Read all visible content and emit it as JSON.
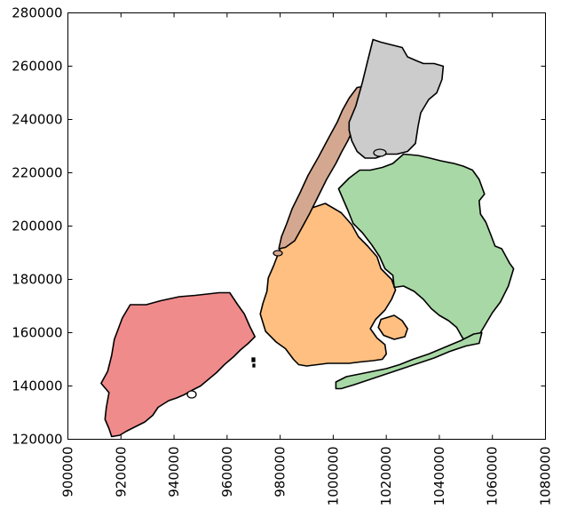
{
  "chart_data": {
    "type": "map",
    "xlim": [
      900000,
      1080000
    ],
    "ylim": [
      120000,
      280000
    ],
    "x_ticks": [
      {
        "value": 900000,
        "label": "900000"
      },
      {
        "value": 920000,
        "label": "920000"
      },
      {
        "value": 940000,
        "label": "940000"
      },
      {
        "value": 960000,
        "label": "960000"
      },
      {
        "value": 980000,
        "label": "980000"
      },
      {
        "value": 1000000,
        "label": "1000000"
      },
      {
        "value": 1020000,
        "label": "1020000"
      },
      {
        "value": 1040000,
        "label": "1040000"
      },
      {
        "value": 1060000,
        "label": "1060000"
      },
      {
        "value": 1080000,
        "label": "1080000"
      }
    ],
    "y_ticks": [
      {
        "value": 120000,
        "label": "120000"
      },
      {
        "value": 140000,
        "label": "140000"
      },
      {
        "value": 160000,
        "label": "160000"
      },
      {
        "value": 180000,
        "label": "180000"
      },
      {
        "value": 200000,
        "label": "200000"
      },
      {
        "value": 220000,
        "label": "220000"
      },
      {
        "value": 240000,
        "label": "240000"
      },
      {
        "value": 260000,
        "label": "260000"
      },
      {
        "value": 280000,
        "label": "280000"
      }
    ],
    "grid": false,
    "x_tick_rotation": 90,
    "regions": [
      {
        "id": "staten-island",
        "color": "#f08b8b",
        "coords": [
          [
            915500,
            124000
          ],
          [
            916500,
            121000
          ],
          [
            919500,
            121500
          ],
          [
            922000,
            123000
          ],
          [
            926000,
            125000
          ],
          [
            929000,
            126500
          ],
          [
            932000,
            129000
          ],
          [
            934000,
            132000
          ],
          [
            938000,
            134500
          ],
          [
            941000,
            135500
          ],
          [
            944000,
            136800
          ],
          [
            947000,
            138500
          ],
          [
            950000,
            140000
          ],
          [
            953000,
            142500
          ],
          [
            956000,
            145000
          ],
          [
            959000,
            148000
          ],
          [
            962500,
            151000
          ],
          [
            965000,
            153500
          ],
          [
            968000,
            156000
          ],
          [
            970500,
            158500
          ],
          [
            968500,
            162500
          ],
          [
            966500,
            167000
          ],
          [
            964000,
            170500
          ],
          [
            961000,
            175000
          ],
          [
            957000,
            175000
          ],
          [
            952500,
            174500
          ],
          [
            948000,
            174000
          ],
          [
            942000,
            173500
          ],
          [
            935000,
            172000
          ],
          [
            929500,
            170500
          ],
          [
            923500,
            170500
          ],
          [
            920500,
            165500
          ],
          [
            917500,
            157500
          ],
          [
            916500,
            151500
          ],
          [
            915000,
            145500
          ],
          [
            912500,
            141000
          ],
          [
            915500,
            137500
          ],
          [
            914500,
            132000
          ],
          [
            914000,
            127500
          ]
        ]
      },
      {
        "id": "brooklyn",
        "color": "#ffbf80",
        "coords": [
          [
            972500,
            167000
          ],
          [
            974500,
            160500
          ],
          [
            978500,
            156500
          ],
          [
            982000,
            154000
          ],
          [
            985000,
            150000
          ],
          [
            987000,
            148000
          ],
          [
            990000,
            147500
          ],
          [
            994000,
            148000
          ],
          [
            998000,
            148500
          ],
          [
            1002000,
            148500
          ],
          [
            1006000,
            148500
          ],
          [
            1010000,
            149000
          ],
          [
            1015000,
            149500
          ],
          [
            1018500,
            150000
          ],
          [
            1020000,
            152000
          ],
          [
            1019500,
            155500
          ],
          [
            1016500,
            158000
          ],
          [
            1014000,
            161500
          ],
          [
            1016000,
            165000
          ],
          [
            1019500,
            168500
          ],
          [
            1022000,
            172500
          ],
          [
            1023500,
            176000
          ],
          [
            1022000,
            180000
          ],
          [
            1018000,
            184000
          ],
          [
            1016500,
            188500
          ],
          [
            1013000,
            192500
          ],
          [
            1009500,
            196000
          ],
          [
            1007000,
            200500
          ],
          [
            1003000,
            205000
          ],
          [
            997000,
            208500
          ],
          [
            991000,
            206500
          ],
          [
            988000,
            203500
          ],
          [
            986500,
            199000
          ],
          [
            983500,
            196500
          ],
          [
            980000,
            191500
          ],
          [
            977500,
            185000
          ],
          [
            975500,
            180500
          ],
          [
            975000,
            175500
          ],
          [
            973500,
            171000
          ]
        ]
      },
      {
        "id": "queens",
        "color": "#a8d8a5",
        "coords": [
          [
            1002000,
            214000
          ],
          [
            1006000,
            218000
          ],
          [
            1010000,
            221000
          ],
          [
            1014000,
            221000
          ],
          [
            1018500,
            222000
          ],
          [
            1022500,
            223500
          ],
          [
            1026500,
            227000
          ],
          [
            1032000,
            226500
          ],
          [
            1036500,
            225500
          ],
          [
            1040500,
            224500
          ],
          [
            1045500,
            223500
          ],
          [
            1049000,
            222500
          ],
          [
            1052500,
            221000
          ],
          [
            1055000,
            217500
          ],
          [
            1057000,
            212000
          ],
          [
            1055000,
            209500
          ],
          [
            1055500,
            204500
          ],
          [
            1057500,
            201500
          ],
          [
            1059500,
            196500
          ],
          [
            1061000,
            192500
          ],
          [
            1063500,
            191500
          ],
          [
            1066500,
            186000
          ],
          [
            1068000,
            184000
          ],
          [
            1066000,
            177500
          ],
          [
            1063000,
            171500
          ],
          [
            1060000,
            167500
          ],
          [
            1057000,
            162500
          ],
          [
            1054000,
            157500
          ],
          [
            1050500,
            155500
          ],
          [
            1048500,
            158500
          ],
          [
            1046500,
            162000
          ],
          [
            1043500,
            164500
          ],
          [
            1040000,
            166500
          ],
          [
            1037000,
            169000
          ],
          [
            1034000,
            172500
          ],
          [
            1030500,
            175500
          ],
          [
            1026500,
            177500
          ],
          [
            1023000,
            177000
          ],
          [
            1022500,
            181500
          ],
          [
            1019500,
            184000
          ],
          [
            1017500,
            188500
          ],
          [
            1014500,
            193000
          ],
          [
            1011000,
            197500
          ],
          [
            1007500,
            201000
          ],
          [
            1005500,
            206000
          ]
        ]
      },
      {
        "id": "rockaway",
        "color": "#a8d8a5",
        "coords": [
          [
            1001000,
            141500
          ],
          [
            1005000,
            143500
          ],
          [
            1010000,
            144500
          ],
          [
            1015000,
            145500
          ],
          [
            1020000,
            146500
          ],
          [
            1025000,
            148000
          ],
          [
            1030000,
            150000
          ],
          [
            1036000,
            152000
          ],
          [
            1042000,
            154500
          ],
          [
            1048000,
            157000
          ],
          [
            1053000,
            159500
          ],
          [
            1056000,
            160000
          ],
          [
            1055000,
            156000
          ],
          [
            1050000,
            155000
          ],
          [
            1044000,
            153000
          ],
          [
            1038000,
            150500
          ],
          [
            1032000,
            148500
          ],
          [
            1026000,
            146500
          ],
          [
            1020000,
            144500
          ],
          [
            1014000,
            142500
          ],
          [
            1008000,
            140500
          ],
          [
            1003000,
            139000
          ],
          [
            1001000,
            139000
          ]
        ]
      },
      {
        "id": "manhattan",
        "color": "#d4a890",
        "coords": [
          [
            979500,
            191500
          ],
          [
            980500,
            196000
          ],
          [
            982500,
            201000
          ],
          [
            984500,
            206500
          ],
          [
            987500,
            212500
          ],
          [
            990500,
            219000
          ],
          [
            994500,
            226000
          ],
          [
            998500,
            233500
          ],
          [
            1001500,
            239000
          ],
          [
            1003500,
            243500
          ],
          [
            1006000,
            248000
          ],
          [
            1009000,
            252000
          ],
          [
            1012000,
            252500
          ],
          [
            1012500,
            248000
          ],
          [
            1010500,
            244000
          ],
          [
            1008500,
            238500
          ],
          [
            1005500,
            232000
          ],
          [
            1003000,
            227500
          ],
          [
            1001000,
            223500
          ],
          [
            997500,
            217500
          ],
          [
            994000,
            210500
          ],
          [
            991000,
            204500
          ],
          [
            988000,
            199000
          ],
          [
            985500,
            194500
          ],
          [
            982000,
            192000
          ]
        ]
      },
      {
        "id": "bronx",
        "color": "#cccccc",
        "coords": [
          [
            1006000,
            239000
          ],
          [
            1008500,
            245000
          ],
          [
            1011000,
            254000
          ],
          [
            1013000,
            262000
          ],
          [
            1015000,
            270000
          ],
          [
            1018000,
            269000
          ],
          [
            1022000,
            268000
          ],
          [
            1026000,
            267000
          ],
          [
            1028000,
            263500
          ],
          [
            1031500,
            262000
          ],
          [
            1034000,
            261000
          ],
          [
            1038000,
            261000
          ],
          [
            1041500,
            260000
          ],
          [
            1041000,
            255000
          ],
          [
            1039000,
            250000
          ],
          [
            1036000,
            247500
          ],
          [
            1033000,
            242500
          ],
          [
            1032000,
            237500
          ],
          [
            1031000,
            231000
          ],
          [
            1028000,
            228000
          ],
          [
            1024000,
            227000
          ],
          [
            1020000,
            227000
          ],
          [
            1016000,
            225500
          ],
          [
            1012000,
            225500
          ],
          [
            1009000,
            228000
          ],
          [
            1007000,
            232000
          ],
          [
            1006000,
            236000
          ]
        ]
      },
      {
        "id": "jamaica-bay-islands",
        "color": "#ffbf80",
        "coords": [
          [
            1018000,
            165000
          ],
          [
            1023000,
            166500
          ],
          [
            1026000,
            164500
          ],
          [
            1028000,
            161500
          ],
          [
            1027000,
            158500
          ],
          [
            1023000,
            157500
          ],
          [
            1019000,
            159000
          ],
          [
            1017000,
            162000
          ]
        ]
      }
    ]
  }
}
